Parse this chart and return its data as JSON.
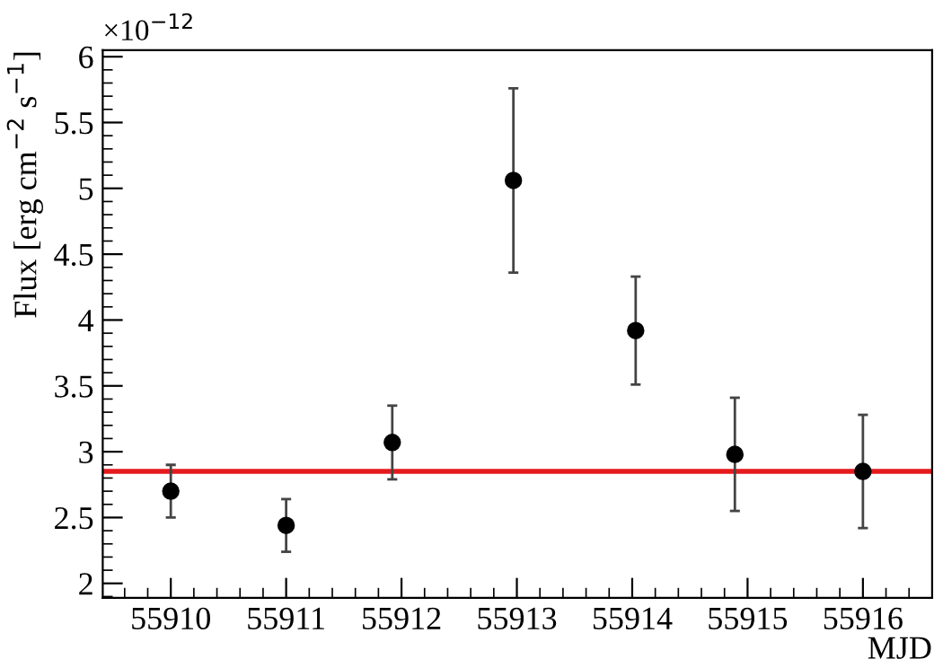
{
  "chart_data": {
    "type": "scatter",
    "xlabel": "MJD",
    "ylabel": "Flux [erg cm$^{−2}$ s$^{−1}$]",
    "annotations": [
      "×10$^{−12}$"
    ],
    "x": [
      55910.0,
      55911.0,
      55911.92,
      55912.97,
      55914.03,
      55914.89,
      55916.0
    ],
    "values": [
      2.7,
      2.44,
      3.07,
      5.06,
      3.92,
      2.98,
      2.85
    ],
    "errors": [
      0.2,
      0.2,
      0.28,
      0.7,
      0.41,
      0.43,
      0.43
    ],
    "color": "#000000",
    "marker": "circle",
    "xlim": [
      55909.41,
      55916.6
    ],
    "ylim": [
      1.89,
      6.05
    ],
    "xticks": [
      55910,
      55911,
      55912,
      55913,
      55914,
      55915,
      55916
    ],
    "yticks": [
      2,
      2.5,
      3,
      3.5,
      4,
      4.5,
      5,
      5.5,
      6
    ],
    "ref_lines": [
      {
        "axis": "y",
        "value": 2.85,
        "color": "#e41a1c"
      }
    ],
    "grid": false,
    "legend": false
  }
}
